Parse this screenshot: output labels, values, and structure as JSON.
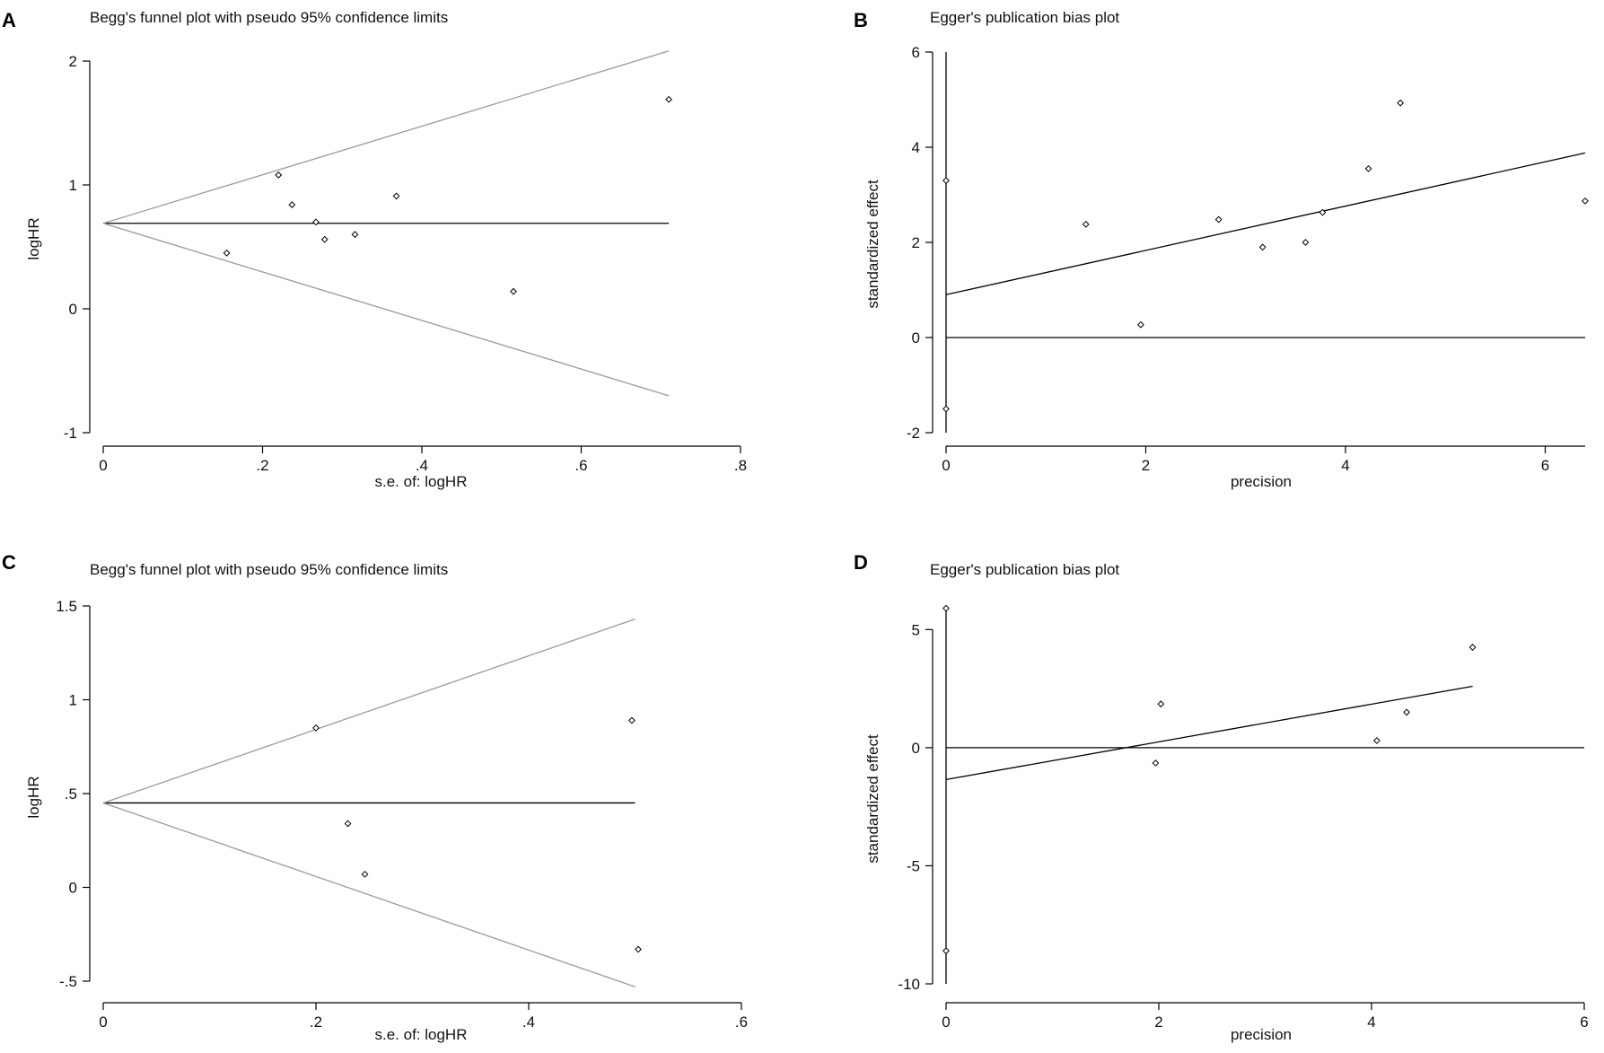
{
  "figure": {
    "panel_labels": [
      "A",
      "B",
      "C",
      "D"
    ]
  },
  "chart_data": [
    {
      "panel": "A",
      "type": "scatter",
      "subtype": "begg_funnel",
      "title": "Begg's funnel plot with pseudo 95% confidence limits",
      "xlabel": "s.e. of: logHR",
      "ylabel": "logHR",
      "xlim": [
        0,
        0.8
      ],
      "ylim": [
        -1,
        2
      ],
      "xticks": [
        0,
        0.2,
        0.4,
        0.6,
        0.8
      ],
      "xtick_labels": [
        "0",
        ".2",
        ".4",
        ".6",
        ".8"
      ],
      "yticks": [
        -1,
        0,
        1,
        2
      ],
      "ytick_labels": [
        "-1",
        "0",
        "1",
        "2"
      ],
      "pooled_logHR": 0.69,
      "max_se": 0.71,
      "points": [
        {
          "x": 0.155,
          "y": 0.45
        },
        {
          "x": 0.22,
          "y": 1.08
        },
        {
          "x": 0.237,
          "y": 0.84
        },
        {
          "x": 0.267,
          "y": 0.7
        },
        {
          "x": 0.278,
          "y": 0.56
        },
        {
          "x": 0.316,
          "y": 0.6
        },
        {
          "x": 0.368,
          "y": 0.91
        },
        {
          "x": 0.515,
          "y": 0.14
        },
        {
          "x": 0.71,
          "y": 1.69
        }
      ]
    },
    {
      "panel": "B",
      "type": "scatter",
      "subtype": "egger_regression",
      "title": "Egger's publication bias plot",
      "xlabel": "precision",
      "ylabel": "standardized effect",
      "xlim": [
        0,
        6.4
      ],
      "ylim": [
        -2,
        6
      ],
      "xticks": [
        0,
        2,
        4,
        6
      ],
      "xtick_labels": [
        "0",
        "2",
        "4",
        "6"
      ],
      "yticks": [
        -2,
        0,
        2,
        4,
        6
      ],
      "ytick_labels": [
        "-2",
        "0",
        "2",
        "4",
        "6"
      ],
      "intercept_ci": [
        -2,
        6
      ],
      "regression_line": {
        "x0": 0,
        "y0": 0.9,
        "x1": 6.4,
        "y1": 3.88
      },
      "points": [
        {
          "x": 0,
          "y": 3.3
        },
        {
          "x": 0,
          "y": -1.5
        },
        {
          "x": 1.4,
          "y": 2.38
        },
        {
          "x": 1.95,
          "y": 0.27
        },
        {
          "x": 2.73,
          "y": 2.48
        },
        {
          "x": 3.17,
          "y": 1.9
        },
        {
          "x": 3.6,
          "y": 2.0
        },
        {
          "x": 3.77,
          "y": 2.63
        },
        {
          "x": 4.23,
          "y": 3.55
        },
        {
          "x": 4.55,
          "y": 4.93
        },
        {
          "x": 6.4,
          "y": 2.87
        }
      ]
    },
    {
      "panel": "C",
      "type": "scatter",
      "subtype": "begg_funnel",
      "title": "Begg's funnel plot with pseudo 95% confidence limits",
      "xlabel": "s.e. of: logHR",
      "ylabel": "logHR",
      "xlim": [
        0,
        0.6
      ],
      "ylim": [
        -0.5,
        1.5
      ],
      "xticks": [
        0,
        0.2,
        0.4,
        0.6
      ],
      "xtick_labels": [
        "0",
        ".2",
        ".4",
        ".6"
      ],
      "yticks": [
        -0.5,
        0,
        0.5,
        1,
        1.5
      ],
      "ytick_labels": [
        "-.5",
        "0",
        ".5",
        "1",
        "1.5"
      ],
      "pooled_logHR": 0.45,
      "max_se": 0.5,
      "points": [
        {
          "x": 0.2,
          "y": 0.85
        },
        {
          "x": 0.23,
          "y": 0.34
        },
        {
          "x": 0.246,
          "y": 0.07
        },
        {
          "x": 0.497,
          "y": 0.89
        },
        {
          "x": 0.503,
          "y": -0.33
        }
      ]
    },
    {
      "panel": "D",
      "type": "scatter",
      "subtype": "egger_regression",
      "title": "Egger's publication bias plot",
      "xlabel": "precision",
      "ylabel": "standardized effect",
      "xlim": [
        0,
        6
      ],
      "ylim": [
        -10,
        6
      ],
      "xticks": [
        0,
        2,
        4,
        6
      ],
      "xtick_labels": [
        "0",
        "2",
        "4",
        "6"
      ],
      "yticks": [
        -10,
        -5,
        0,
        5
      ],
      "ytick_labels": [
        "-10",
        "-5",
        "0",
        "5"
      ],
      "intercept_ci": [
        -10,
        5.8
      ],
      "regression_line": {
        "x0": 0,
        "y0": -1.35,
        "x1": 4.95,
        "y1": 2.6
      },
      "points": [
        {
          "x": 0,
          "y": 5.9
        },
        {
          "x": 0,
          "y": -8.6
        },
        {
          "x": 1.97,
          "y": -0.65
        },
        {
          "x": 2.02,
          "y": 1.85
        },
        {
          "x": 4.05,
          "y": 0.3
        },
        {
          "x": 4.33,
          "y": 1.5
        },
        {
          "x": 4.95,
          "y": 4.25
        }
      ]
    }
  ]
}
